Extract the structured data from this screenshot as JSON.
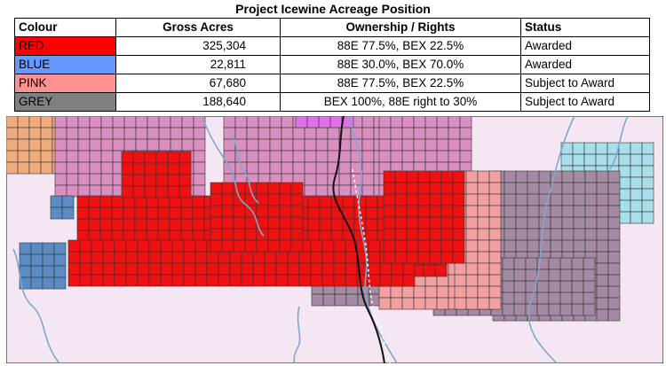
{
  "title": "Project Icewine Acreage Position",
  "headers": [
    "Colour",
    "Gross Acres",
    "Ownership / Rights",
    "Status"
  ],
  "rows": [
    {
      "colour": "RED",
      "swatch": "#ff0000",
      "acres": "325,304",
      "ownership": "88E 77.5%, BEX 22.5%",
      "status": "Awarded"
    },
    {
      "colour": "BLUE",
      "swatch": "#6699ff",
      "acres": "22,811",
      "ownership": "88E 30.0%, BEX 70.0%",
      "status": "Awarded"
    },
    {
      "colour": "PINK",
      "swatch": "#ff9191",
      "acres": "67,680",
      "ownership": "88E 77.5%, BEX 22.5%",
      "status": "Subject to Award"
    },
    {
      "colour": "GREY",
      "swatch": "#808080",
      "acres": "188,640",
      "ownership": "BEX 100%, 88E right to 30%",
      "status": "Subject to Award"
    }
  ],
  "map": {
    "land_color": "#f5e6f3",
    "river_color": "#7fa6cf",
    "colors": {
      "red": "#ee1111",
      "pink": "#f3a0a3",
      "grey": "#a48ba3",
      "blue": "#5b8cc4",
      "mauve": "#d98fbf",
      "orange": "#efaa7e",
      "light_blue": "#a9dfea",
      "magenta": "#e070e8"
    }
  }
}
